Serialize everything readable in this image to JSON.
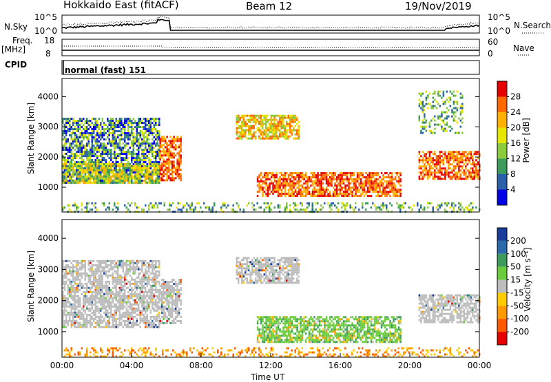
{
  "header": {
    "title": "Hokkaido East (fitACF)",
    "beam": "Beam 12",
    "date": "19/Nov/2019"
  },
  "top_panels": {
    "nsky_label": "N.Sky",
    "nsky_ticks": [
      "10^5",
      "10^0"
    ],
    "nsearch_label": "N.Search",
    "freq_label_1": "Freq.",
    "freq_label_2": "[MHz]",
    "freq_ticks": [
      "18",
      "8"
    ],
    "nave_label": "Nave",
    "nave_ticks": [
      "60",
      "0"
    ],
    "cpid_label": "CPID",
    "cpid_value": "normal (fast) 151"
  },
  "chart_data": [
    {
      "type": "heatmap",
      "panel": "power",
      "ylabel": "Slant Range [km]",
      "yticks": [
        1000,
        2000,
        3000,
        4000
      ],
      "ylim": [
        180,
        4600
      ],
      "xlim": [
        0,
        24
      ],
      "colorbar_label": "Power [dB]",
      "colorbar_ticks": [
        "28",
        "24",
        "20",
        "16",
        "12",
        "8",
        "4"
      ],
      "colorbar_colors": [
        "#e60000",
        "#ff6a00",
        "#ffb000",
        "#e6e600",
        "#8ccc3c",
        "#3c9a5a",
        "#2a5faa",
        "#0000e6"
      ],
      "regions": [
        {
          "t0": 0.0,
          "t1": 5.6,
          "r0": 1150,
          "r1": 3300,
          "level": "mixed-low"
        },
        {
          "t0": 0.0,
          "t1": 5.6,
          "r0": 1150,
          "r1": 1800,
          "level": "mid"
        },
        {
          "t0": 5.6,
          "t1": 6.8,
          "r0": 1250,
          "r1": 2700,
          "level": "high"
        },
        {
          "t0": 10.0,
          "t1": 13.6,
          "r0": 2600,
          "r1": 3400,
          "level": "mid-high"
        },
        {
          "t0": 11.2,
          "t1": 19.5,
          "r0": 700,
          "r1": 1500,
          "level": "high"
        },
        {
          "t0": 20.5,
          "t1": 24.0,
          "r0": 1300,
          "r1": 2200,
          "level": "high"
        },
        {
          "t0": 20.5,
          "t1": 23.0,
          "r0": 2800,
          "r1": 4200,
          "level": "low"
        },
        {
          "t0": 0.0,
          "t1": 24.0,
          "r0": 200,
          "r1": 500,
          "level": "low"
        }
      ]
    },
    {
      "type": "heatmap",
      "panel": "velocity",
      "ylabel": "Slant Range [km]",
      "xlabel": "Time UT",
      "xticks": [
        "00:00",
        "04:00",
        "08:00",
        "12:00",
        "16:00",
        "20:00",
        "00:00"
      ],
      "yticks": [
        1000,
        2000,
        3000,
        4000
      ],
      "ylim": [
        180,
        4600
      ],
      "xlim": [
        0,
        24
      ],
      "colorbar_label": "Velocity [m s⁻¹]",
      "colorbar_ticks": [
        "200",
        "100",
        "50",
        "15",
        "-15",
        "-50",
        "-100",
        "-200"
      ],
      "colorbar_colors": [
        "#1a3c9a",
        "#2a6aaa",
        "#3c9a5a",
        "#6acc3c",
        "#bdbdbd",
        "#ffcc00",
        "#ff9a00",
        "#ff5a00",
        "#e60000"
      ],
      "regions": [
        {
          "t0": 0.0,
          "t1": 5.6,
          "r0": 1150,
          "r1": 3300,
          "level": "ground-scatter"
        },
        {
          "t0": 5.6,
          "t1": 6.8,
          "r0": 1250,
          "r1": 2700,
          "level": "ground-scatter"
        },
        {
          "t0": 10.0,
          "t1": 13.6,
          "r0": 2600,
          "r1": 3400,
          "level": "ground-scatter"
        },
        {
          "t0": 11.2,
          "t1": 19.5,
          "r0": 700,
          "r1": 1500,
          "level": "positive-50"
        },
        {
          "t0": 20.5,
          "t1": 24.0,
          "r0": 1300,
          "r1": 2200,
          "level": "ground-scatter"
        },
        {
          "t0": 0.0,
          "t1": 24.0,
          "r0": 200,
          "r1": 500,
          "level": "negative-small"
        }
      ]
    }
  ]
}
